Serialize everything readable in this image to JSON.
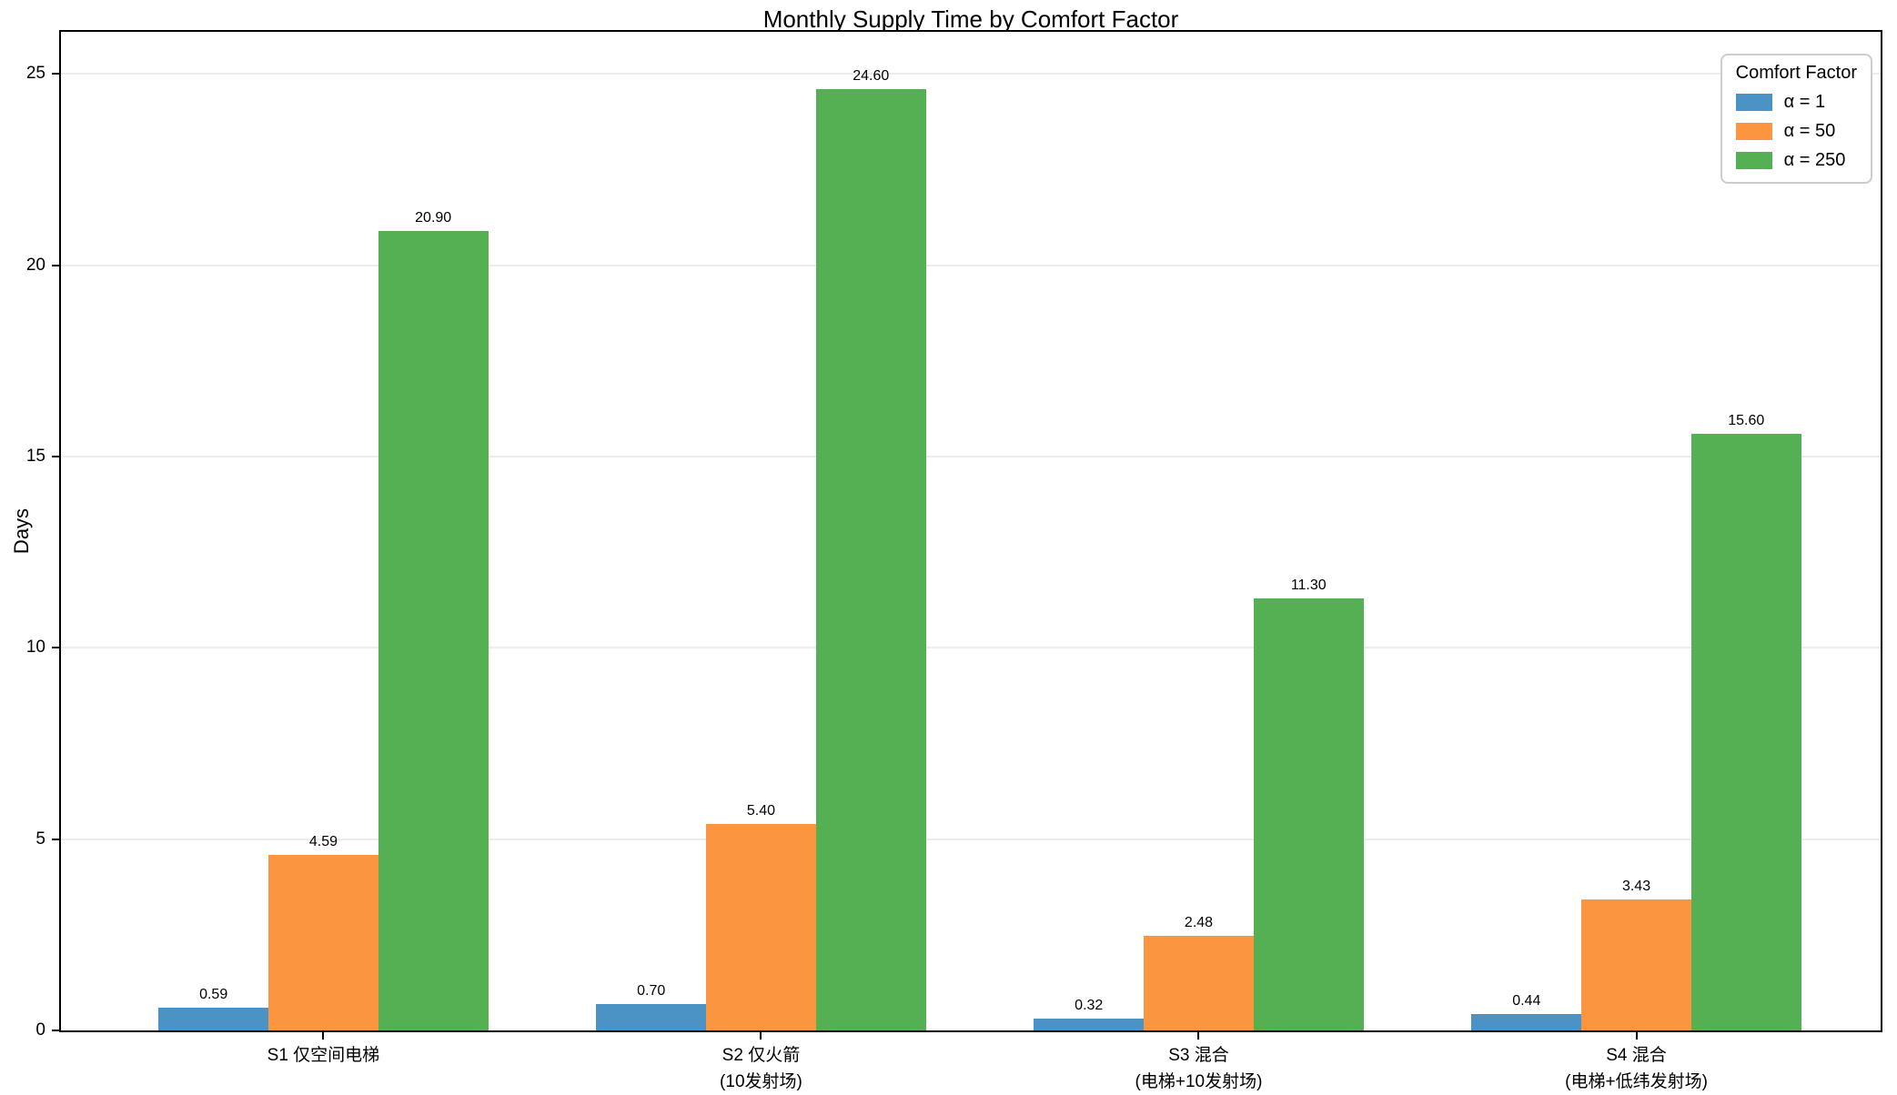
{
  "chart_data": {
    "type": "bar",
    "title": "Monthly Supply Time by Comfort Factor",
    "ylabel": "Days",
    "xlabel": "",
    "ylim": [
      0,
      26.1
    ],
    "yticks": [
      0,
      5,
      10,
      15,
      20,
      25
    ],
    "grid": "horizontal light-gray lines at y ticks",
    "legend_title": "Comfort Factor",
    "legend_position": "upper right",
    "categories": [
      [
        "S1 仅空间电梯"
      ],
      [
        "S2 仅火箭",
        "(10发射场)"
      ],
      [
        "S3 混合",
        "(电梯+10发射场)"
      ],
      [
        "S4 混合",
        "(电梯+低纬发射场)"
      ]
    ],
    "series": [
      {
        "name": "α = 1",
        "color": "#4b92c5",
        "values": [
          0.59,
          0.7,
          0.32,
          0.44
        ]
      },
      {
        "name": "α = 50",
        "color": "#fc9540",
        "values": [
          4.59,
          5.4,
          2.48,
          3.43
        ]
      },
      {
        "name": "α = 250",
        "color": "#54b053",
        "values": [
          20.9,
          24.6,
          11.3,
          15.6
        ]
      }
    ],
    "value_label_decimals": 2
  },
  "colors": {
    "background": "#ffffff",
    "axis": "#000000",
    "grid": "#ececec",
    "legend_border": "#cccccc",
    "text": "#000000"
  }
}
